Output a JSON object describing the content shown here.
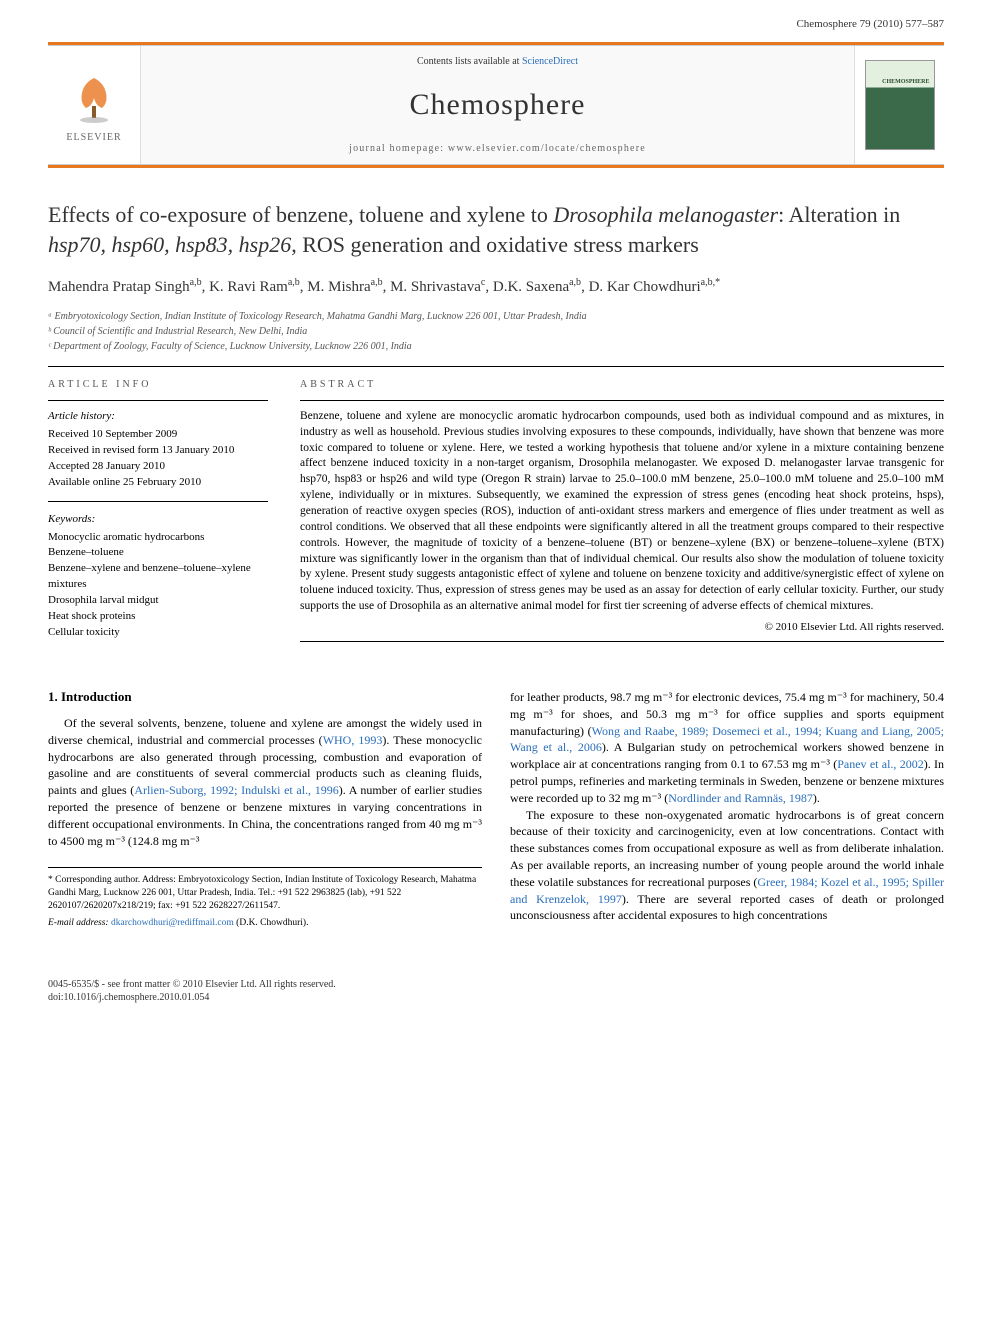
{
  "header": {
    "running_head": "Chemosphere 79 (2010) 577–587"
  },
  "masthead": {
    "contents_label": "Contents lists available at ",
    "contents_link": "ScienceDirect",
    "journal_name": "Chemosphere",
    "homepage_label": "journal homepage: www.elsevier.com/locate/chemosphere",
    "publisher": "ELSEVIER",
    "cover_label": "CHEMOSPHERE"
  },
  "title": {
    "main": "Effects of co-exposure of benzene, toluene and xylene to ",
    "italic1": "Drosophila melanogaster",
    "main2": ": Alteration in ",
    "italic2": "hsp70, hsp60, hsp83, hsp26",
    "main3": ", ROS generation and oxidative stress markers"
  },
  "authors_html": "Mahendra Pratap Singh<sup>a,b</sup>, K. Ravi Ram<sup>a,b</sup>, M. Mishra<sup>a,b</sup>, M. Shrivastava<sup>c</sup>, D.K. Saxena<sup>a,b</sup>, D. Kar Chowdhuri<sup>a,b,*</sup>",
  "affiliations": [
    "ᵃ Embryotoxicology Section, Indian Institute of Toxicology Research, Mahatma Gandhi Marg, Lucknow 226 001, Uttar Pradesh, India",
    "ᵇ Council of Scientific and Industrial Research, New Delhi, India",
    "ᶜ Department of Zoology, Faculty of Science, Lucknow University, Lucknow 226 001, India"
  ],
  "article_info": {
    "header": "ARTICLE INFO",
    "history_title": "Article history:",
    "history": [
      "Received 10 September 2009",
      "Received in revised form 13 January 2010",
      "Accepted 28 January 2010",
      "Available online 25 February 2010"
    ],
    "keywords_title": "Keywords:",
    "keywords": [
      "Monocyclic aromatic hydrocarbons",
      "Benzene–toluene",
      "Benzene–xylene and benzene–toluene–xylene mixtures",
      "Drosophila larval midgut",
      "Heat shock proteins",
      "Cellular toxicity"
    ]
  },
  "abstract": {
    "header": "ABSTRACT",
    "text": "Benzene, toluene and xylene are monocyclic aromatic hydrocarbon compounds, used both as individual compound and as mixtures, in industry as well as household. Previous studies involving exposures to these compounds, individually, have shown that benzene was more toxic compared to toluene or xylene. Here, we tested a working hypothesis that toluene and/or xylene in a mixture containing benzene affect benzene induced toxicity in a non-target organism, Drosophila melanogaster. We exposed D. melanogaster larvae transgenic for hsp70, hsp83 or hsp26 and wild type (Oregon R strain) larvae to 25.0–100.0 mM benzene, 25.0–100.0 mM toluene and 25.0–100 mM xylene, individually or in mixtures. Subsequently, we examined the expression of stress genes (encoding heat shock proteins, hsps), generation of reactive oxygen species (ROS), induction of anti-oxidant stress markers and emergence of flies under treatment as well as control conditions. We observed that all these endpoints were significantly altered in all the treatment groups compared to their respective controls. However, the magnitude of toxicity of a benzene–toluene (BT) or benzene–xylene (BX) or benzene–toluene–xylene (BTX) mixture was significantly lower in the organism than that of individual chemical. Our results also show the modulation of toluene toxicity by xylene. Present study suggests antagonistic effect of xylene and toluene on benzene toxicity and additive/synergistic effect of xylene on toluene induced toxicity. Thus, expression of stress genes may be used as an assay for detection of early cellular toxicity. Further, our study supports the use of Drosophila as an alternative animal model for first tier screening of adverse effects of chemical mixtures.",
    "copyright": "© 2010 Elsevier Ltd. All rights reserved."
  },
  "intro": {
    "heading": "1. Introduction",
    "left_col": "Of the several solvents, benzene, toluene and xylene are amongst the widely used in diverse chemical, industrial and commercial processes (<span class=\"ref\">WHO, 1993</span>). These monocyclic hydrocarbons are also generated through processing, combustion and evaporation of gasoline and are constituents of several commercial products such as cleaning fluids, paints and glues (<span class=\"ref\">Arlien-Suborg, 1992; Indulski et al., 1996</span>). A number of earlier studies reported the presence of benzene or benzene mixtures in varying concentrations in different occupational environments. In China, the concentrations ranged from 40 mg m⁻³ to 4500 mg m⁻³ (124.8 mg m⁻³",
    "right_col_p1": "for leather products, 98.7 mg m⁻³ for electronic devices, 75.4 mg m⁻³ for machinery, 50.4 mg m⁻³ for shoes, and 50.3 mg m⁻³ for office supplies and sports equipment manufacturing) (<span class=\"ref\">Wong and Raabe, 1989; Dosemeci et al., 1994; Kuang and Liang, 2005; Wang et al., 2006</span>). A Bulgarian study on petrochemical workers showed benzene in workplace air at concentrations ranging from 0.1 to 67.53 mg m⁻³ (<span class=\"ref\">Panev et al., 2002</span>). In petrol pumps, refineries and marketing terminals in Sweden, benzene or benzene mixtures were recorded up to 32 mg m⁻³ (<span class=\"ref\">Nordlinder and Ramnäs, 1987</span>).",
    "right_col_p2": "The exposure to these non-oxygenated aromatic hydrocarbons is of great concern because of their toxicity and carcinogenicity, even at low concentrations. Contact with these substances comes from occupational exposure as well as from deliberate inhalation. As per available reports, an increasing number of young people around the world inhale these volatile substances for recreational purposes (<span class=\"ref\">Greer, 1984; Kozel et al., 1995; Spiller and Krenzelok, 1997</span>). There are several reported cases of death or prolonged unconsciousness after accidental exposures to high concentrations"
  },
  "footnotes": {
    "corresponding": "* Corresponding author. Address: Embryotoxicology Section, Indian Institute of Toxicology Research, Mahatma Gandhi Marg, Lucknow 226 001, Uttar Pradesh, India. Tel.: +91 522 2963825 (lab), +91 522 2620107/2620207x218/219; fax: +91 522 2628227/2611547.",
    "email_label": "E-mail address: ",
    "email": "dkarchowdhuri@rediffmail.com",
    "email_suffix": " (D.K. Chowdhuri)."
  },
  "footer": {
    "line1": "0045-6535/$ - see front matter © 2010 Elsevier Ltd. All rights reserved.",
    "line2": "doi:10.1016/j.chemosphere.2010.01.054"
  },
  "colors": {
    "accent": "#e87722",
    "link": "#2a6ebb",
    "text": "#000000",
    "muted": "#555555"
  }
}
